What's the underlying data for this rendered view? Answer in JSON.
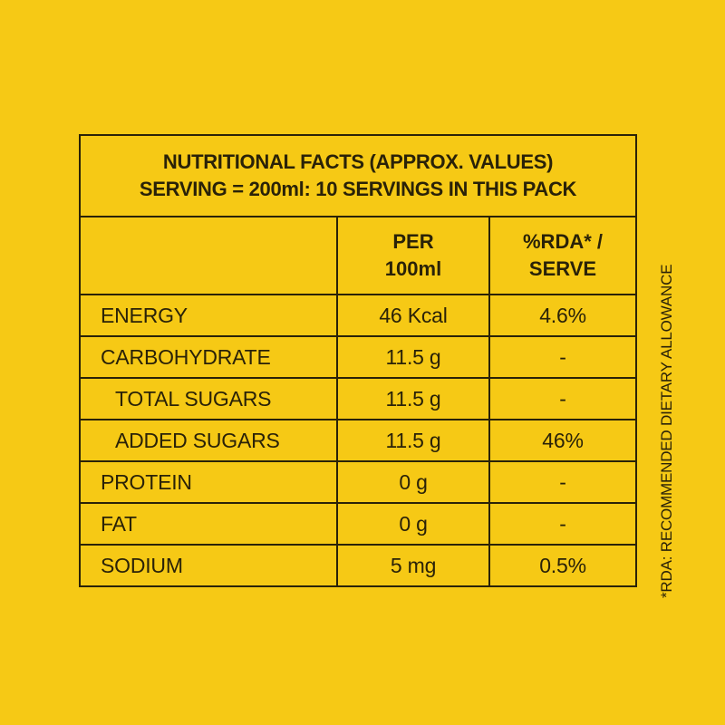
{
  "header": {
    "line1": "NUTRITIONAL FACTS  (APPROX. VALUES)",
    "line2": "SERVING = 200ml: 10 SERVINGS IN THIS PACK"
  },
  "columns": {
    "per_line1": "PER",
    "per_line2": "100ml",
    "rda_line1": "%RDA* /",
    "rda_line2": "SERVE"
  },
  "rows": [
    {
      "label": "ENERGY",
      "per100": "46 Kcal",
      "rda": "4.6%"
    },
    {
      "label": "CARBOHYDRATE",
      "per100": "11.5 g",
      "rda": "-"
    },
    {
      "label": "TOTAL SUGARS",
      "per100": "11.5 g",
      "rda": "-"
    },
    {
      "label": "ADDED SUGARS",
      "per100": "11.5 g",
      "rda": "46%"
    },
    {
      "label": "PROTEIN",
      "per100": "0 g",
      "rda": "-"
    },
    {
      "label": "FAT",
      "per100": "0 g",
      "rda": "-"
    },
    {
      "label": "SODIUM",
      "per100": "5 mg",
      "rda": "0.5%"
    }
  ],
  "footnote": "*RDA: RECOMMENDED DIETARY ALLOWANCE",
  "colors": {
    "background": "#f6c915",
    "ink": "#2a2208"
  }
}
